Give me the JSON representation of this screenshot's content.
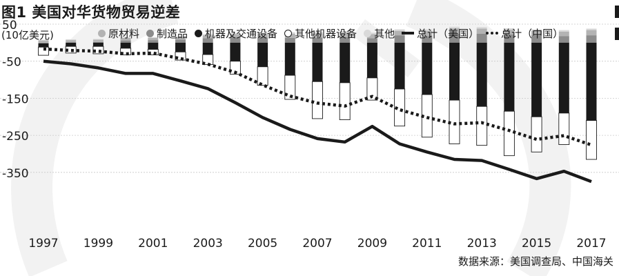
{
  "figure": {
    "title": "图1 美国对华货物贸易逆差",
    "unit": "(10亿美元)",
    "source": "数据来源：美国调查局、中国海关"
  },
  "legend": {
    "items": [
      {
        "key": "raw",
        "label": "原材料",
        "color": "#b3b3b3",
        "style": "dot"
      },
      {
        "key": "mfg",
        "label": "制造品",
        "color": "#8c8c8c",
        "style": "dot"
      },
      {
        "key": "mach",
        "label": "机器及交通设备",
        "color": "#1a1a1a",
        "style": "dot"
      },
      {
        "key": "other_mach",
        "label": "其他机器设备",
        "color": "#ffffff",
        "style": "dot-outline"
      },
      {
        "key": "misc",
        "label": "其他",
        "color": "#d9d9d9",
        "style": "dot"
      },
      {
        "key": "us_total",
        "label": "总计（美国）",
        "color": "#1a1a1a",
        "style": "solid"
      },
      {
        "key": "cn_total",
        "label": "总计（中国）",
        "color": "#1a1a1a",
        "style": "dotted"
      }
    ]
  },
  "chart_data": {
    "type": "bar",
    "x": [
      1997,
      1998,
      1999,
      2000,
      2001,
      2002,
      2003,
      2004,
      2005,
      2006,
      2007,
      2008,
      2009,
      2010,
      2011,
      2012,
      2013,
      2014,
      2015,
      2016,
      2017
    ],
    "x_tick_labels": [
      "1997",
      "1999",
      "2001",
      "2003",
      "2005",
      "2007",
      "2009",
      "2011",
      "2013",
      "2015",
      "2017"
    ],
    "y_ticks": [
      50,
      -50,
      -150,
      -250,
      -350
    ],
    "ylim": [
      -400,
      60
    ],
    "xlabel": "",
    "ylabel": "",
    "grid": true,
    "series": [
      {
        "name": "其他",
        "values": [
          2,
          2,
          2,
          2,
          2,
          2,
          3,
          3,
          3,
          4,
          4,
          4,
          4,
          4,
          4,
          4,
          4,
          4,
          4,
          4,
          4
        ]
      },
      {
        "name": "原材料",
        "values": [
          6,
          6,
          6,
          7,
          6,
          7,
          8,
          9,
          10,
          11,
          11,
          12,
          11,
          12,
          14,
          15,
          14,
          13,
          12,
          12,
          14
        ]
      },
      {
        "name": "制造品",
        "values": [
          -2,
          1,
          2,
          6,
          7,
          8,
          12,
          14,
          14,
          13,
          14,
          15,
          12,
          20,
          18,
          24,
          24,
          22,
          20,
          18,
          20
        ]
      },
      {
        "name": "机器及交通设备",
        "values": [
          -10,
          -10,
          -10,
          -15,
          -18,
          -25,
          -32,
          -50,
          -65,
          -88,
          -105,
          -108,
          -95,
          -125,
          -140,
          -155,
          -172,
          -185,
          -200,
          -190,
          -210
        ]
      },
      {
        "name": "其他机器设备",
        "values": [
          -22,
          -18,
          -20,
          -18,
          -15,
          -22,
          -27,
          -35,
          -50,
          -65,
          -100,
          -100,
          -60,
          -100,
          -115,
          -118,
          -105,
          -120,
          -95,
          -85,
          -105
        ]
      },
      {
        "name": "总计（美国）",
        "values": [
          -50,
          -57,
          -68,
          -83,
          -83,
          -103,
          -124,
          -162,
          -202,
          -234,
          -259,
          -268,
          -226,
          -273,
          -295,
          -315,
          -318,
          -342,
          -367,
          -347,
          -375
        ]
      },
      {
        "name": "总计（中国）",
        "values": [
          -17,
          -21,
          -23,
          -30,
          -28,
          -43,
          -58,
          -80,
          -114,
          -144,
          -163,
          -171,
          -145,
          -181,
          -202,
          -219,
          -216,
          -237,
          -261,
          -251,
          -276
        ]
      }
    ]
  }
}
